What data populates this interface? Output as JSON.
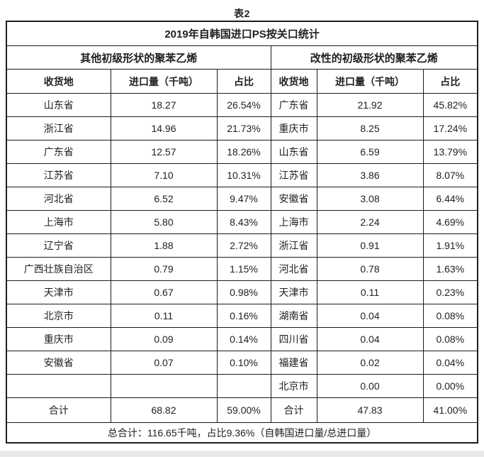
{
  "page_title": "表2",
  "table": {
    "title": "2019年自韩国进口PS按关口统计",
    "sections": {
      "left": "其他初级形状的聚苯乙烯",
      "right": "改性的初级形状的聚苯乙烯"
    },
    "columns": [
      "收货地",
      "进口量（千吨）",
      "占比"
    ],
    "rows": [
      [
        "山东省",
        "18.27",
        "26.54%",
        "广东省",
        "21.92",
        "45.82%"
      ],
      [
        "浙江省",
        "14.96",
        "21.73%",
        "重庆市",
        "8.25",
        "17.24%"
      ],
      [
        "广东省",
        "12.57",
        "18.26%",
        "山东省",
        "6.59",
        "13.79%"
      ],
      [
        "江苏省",
        "7.10",
        "10.31%",
        "江苏省",
        "3.86",
        "8.07%"
      ],
      [
        "河北省",
        "6.52",
        "9.47%",
        "安徽省",
        "3.08",
        "6.44%"
      ],
      [
        "上海市",
        "5.80",
        "8.43%",
        "上海市",
        "2.24",
        "4.69%"
      ],
      [
        "辽宁省",
        "1.88",
        "2.72%",
        "浙江省",
        "0.91",
        "1.91%"
      ],
      [
        "广西壮族自治区",
        "0.79",
        "1.15%",
        "河北省",
        "0.78",
        "1.63%"
      ],
      [
        "天津市",
        "0.67",
        "0.98%",
        "天津市",
        "0.11",
        "0.23%"
      ],
      [
        "北京市",
        "0.11",
        "0.16%",
        "湖南省",
        "0.04",
        "0.08%"
      ],
      [
        "重庆市",
        "0.09",
        "0.14%",
        "四川省",
        "0.04",
        "0.08%"
      ],
      [
        "安徽省",
        "0.07",
        "0.10%",
        "福建省",
        "0.02",
        "0.04%"
      ],
      [
        "",
        "",
        "",
        "北京市",
        "0.00",
        "0.00%"
      ]
    ],
    "totals": [
      "合计",
      "68.82",
      "59.00%",
      "合计",
      "47.83",
      "41.00%"
    ],
    "footer": "总合计：116.65千吨，占比9.36%（自韩国进口量/总进口量）"
  },
  "colors": {
    "border": "#1c1c1c",
    "text": "#212121",
    "background": "#ffffff",
    "bottom_strip": "#e9e9e9"
  }
}
